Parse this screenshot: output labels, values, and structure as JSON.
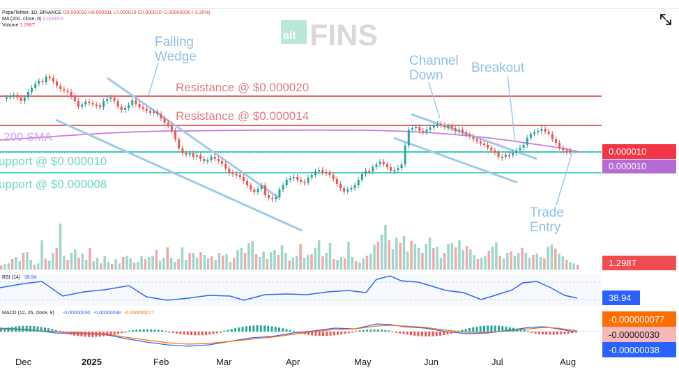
{
  "header": {
    "symbol_line": "Pepe/Tether, 1D, BINANCE",
    "ohlc_line": "O0.000010  H0.000011  L0.000010  C0.000010  -0.00000036 (-3.35%)",
    "ma_line_label": "MA (200, close, 0)",
    "ma_line_value": "0.000010",
    "volume_line_label": "Volume",
    "volume_line_value": "1.298T"
  },
  "logo": {
    "alt": "alt",
    "fins": "FINS",
    "colors": {
      "alt_box": "#b9e8d9",
      "fins": "#d9d9d9"
    }
  },
  "chart_data": {
    "type": "candlestick",
    "x_months": [
      "Dec",
      "2025",
      "Feb",
      "Mar",
      "Apr",
      "May",
      "Jun",
      "Jul",
      "Aug"
    ],
    "annotations": {
      "falling_wedge": "Falling\nWedge",
      "channel_down": "Channel\nDown",
      "breakout": "Breakout",
      "trade_entry": "Trade\nEntry",
      "resistance_1": "Resistance @ $0.000020",
      "resistance_2": "Resistance @ $0.000014",
      "sma": "200 SMA",
      "support_1": "upport @ $0.000010",
      "support_2": "upport @ $0.000008"
    },
    "right_labels": {
      "price_close": "0.000010",
      "price_sma": "0.000010",
      "volume": "1.298T",
      "rsi": "38.94",
      "macd_line": "-0.000000077",
      "macd_signal": "-0.00000030",
      "macd_hist": "-0.00000038"
    },
    "indicators": {
      "rsi_label": "RSI (14)",
      "rsi_value": "38.94",
      "macd_label": "MACD (12, 26, close, 9)",
      "macd_values": [
        "-0.00000030",
        "-0.00000038",
        "-0.000000077"
      ]
    },
    "colors": {
      "up": "#26a69a",
      "down": "#ef5350",
      "resistance": "#e06666",
      "support": "#4fd1c5",
      "sma": "#c978e6",
      "trend": "#9fcae8",
      "rsi": "#2962ff",
      "macd_line": "#2962ff",
      "macd_signal": "#ff6d00",
      "volume_label_bg": "#f04c50",
      "rsi_label_bg": "#2962ff",
      "macd_line_bg": "#ff6d00",
      "macd_signal_bg": "#f7b8b8",
      "macd_hist_bg": "#2962ff",
      "price_label_red": "#f23645",
      "price_label_purple": "#b46bd2"
    }
  }
}
